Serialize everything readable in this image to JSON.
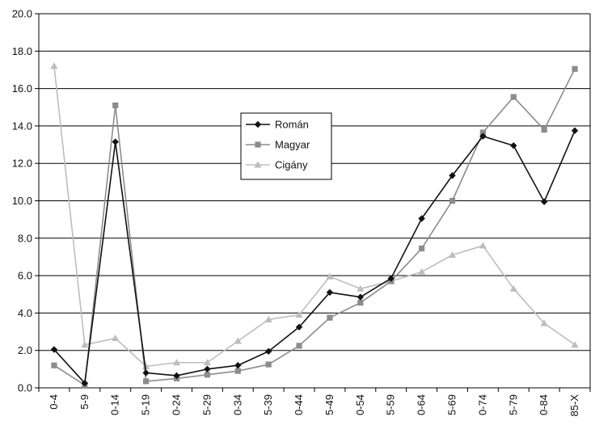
{
  "chart_data": {
    "type": "line",
    "categories": [
      "0-4",
      "5-9",
      "0-14",
      "5-19",
      "0-24",
      "5-29",
      "0-34",
      "5-39",
      "0-44",
      "5-49",
      "0-54",
      "5-59",
      "0-64",
      "5-69",
      "0-74",
      "5-79",
      "0-84",
      "85-X"
    ],
    "series": [
      {
        "name": "Román",
        "color": "#111111",
        "marker": "diamond",
        "values": [
          2.05,
          0.25,
          13.15,
          0.8,
          0.65,
          1.0,
          1.2,
          1.95,
          3.25,
          5.1,
          4.85,
          5.85,
          9.05,
          11.35,
          13.45,
          12.95,
          9.95,
          13.75
        ]
      },
      {
        "name": "Magyar",
        "color": "#8c8c8c",
        "marker": "square",
        "values": [
          1.2,
          0.15,
          15.1,
          0.35,
          0.5,
          0.7,
          0.9,
          1.25,
          2.25,
          3.75,
          4.55,
          5.7,
          7.45,
          10.0,
          13.65,
          15.55,
          13.8,
          17.05
        ]
      },
      {
        "name": "Cigány",
        "color": "#bdbdbd",
        "marker": "triangle",
        "values": [
          17.2,
          2.3,
          2.65,
          1.15,
          1.35,
          1.35,
          2.5,
          3.65,
          3.9,
          5.95,
          5.3,
          5.7,
          6.2,
          7.1,
          7.6,
          5.3,
          3.45,
          2.3
        ]
      }
    ],
    "ylim": [
      0,
      20
    ],
    "yticks": [
      "0.0",
      "2.0",
      "4.0",
      "6.0",
      "8.0",
      "10.0",
      "12.0",
      "14.0",
      "16.0",
      "18.0",
      "20.0"
    ],
    "grid": true,
    "legend_position": "center"
  }
}
